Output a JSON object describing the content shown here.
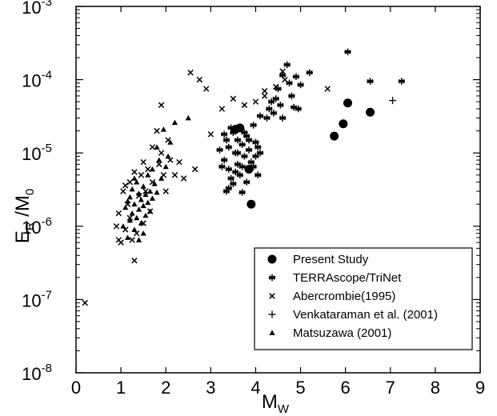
{
  "chart_data": {
    "type": "scatter",
    "xlabel": "M",
    "xlabel_sub": "W",
    "ylabel": "E",
    "ylabel_sub1": "R",
    "ylabel_mid": " /M",
    "ylabel_sub2": "0",
    "xlim": [
      0,
      9
    ],
    "ylim": [
      1e-08,
      0.001
    ],
    "y_scale": "log",
    "grid": false,
    "legend_position": "bottom-right",
    "x_ticks": [
      0,
      1,
      2,
      3,
      4,
      5,
      6,
      7,
      8,
      9
    ],
    "y_ticks": [
      {
        "value": 1e-08,
        "base": "10",
        "exp": "-8"
      },
      {
        "value": 1e-07,
        "base": "10",
        "exp": "-7"
      },
      {
        "value": 1e-06,
        "base": "10",
        "exp": "-6"
      },
      {
        "value": 1e-05,
        "base": "10",
        "exp": "-5"
      },
      {
        "value": 0.0001,
        "base": "10",
        "exp": "-4"
      },
      {
        "value": 0.001,
        "base": "10",
        "exp": "-3"
      }
    ],
    "series": [
      {
        "name": "Present Study",
        "marker": "circle",
        "points": [
          [
            3.55,
            2.1e-05
          ],
          [
            3.65,
            2.2e-05
          ],
          [
            3.85,
            6e-06
          ],
          [
            3.9,
            2e-06
          ],
          [
            5.75,
            1.7e-05
          ],
          [
            5.95,
            2.5e-05
          ],
          [
            6.05,
            4.8e-05
          ],
          [
            6.55,
            3.6e-05
          ]
        ]
      },
      {
        "name": "TERRAscope/TriNet",
        "marker": "asterisk",
        "points": [
          [
            3.2,
            1.1e-05
          ],
          [
            3.3,
            8e-06
          ],
          [
            3.35,
            1.5e-05
          ],
          [
            3.4,
            6e-06
          ],
          [
            3.45,
            4.5e-06
          ],
          [
            3.5,
            1.9e-05
          ],
          [
            3.55,
            1e-05
          ],
          [
            3.6,
            7e-06
          ],
          [
            3.65,
            5e-06
          ],
          [
            3.7,
            1.3e-05
          ],
          [
            3.75,
            9e-06
          ],
          [
            3.8,
            1.7e-05
          ],
          [
            3.85,
            1.1e-05
          ],
          [
            3.9,
            7.5e-06
          ],
          [
            3.95,
            2.4e-05
          ],
          [
            4.0,
            1.4e-05
          ],
          [
            4.05,
            1.2e-05
          ],
          [
            4.1,
            3.2e-05
          ],
          [
            3.3,
            1.8e-05
          ],
          [
            3.4,
            3.3e-06
          ],
          [
            3.5,
            3.8e-06
          ],
          [
            3.6,
            1.5e-05
          ],
          [
            3.7,
            6.5e-06
          ],
          [
            3.8,
            4e-06
          ],
          [
            3.95,
            6.5e-06
          ],
          [
            3.25,
            6.5e-06
          ],
          [
            3.45,
            2.2e-05
          ],
          [
            3.7,
            2.9e-06
          ],
          [
            3.85,
            1.5e-05
          ],
          [
            4.0,
            9e-06
          ],
          [
            3.4,
            1.2e-05
          ],
          [
            3.6,
            1e-05
          ],
          [
            3.75,
            1.9e-05
          ],
          [
            3.35,
            3e-06
          ],
          [
            3.55,
            5.5e-06
          ],
          [
            4.4,
            3.5e-05
          ],
          [
            4.45,
            5.5e-05
          ],
          [
            4.5,
            7.5e-05
          ],
          [
            4.55,
            4.5e-05
          ],
          [
            4.6,
            3e-05
          ],
          [
            4.3,
            4e-05
          ],
          [
            4.35,
            5e-05
          ],
          [
            4.25,
            3e-05
          ],
          [
            4.7,
            0.00016
          ],
          [
            4.75,
            9e-05
          ],
          [
            4.8,
            6e-05
          ],
          [
            4.85,
            4.2e-05
          ],
          [
            4.9,
            0.00011
          ],
          [
            5.0,
            8.5e-05
          ],
          [
            5.2,
            0.000125
          ],
          [
            4.6,
            0.000115
          ],
          [
            4.95,
            4e-05
          ],
          [
            4.1,
            1e-05
          ],
          [
            4.05,
            5e-06
          ],
          [
            6.05,
            0.00024
          ],
          [
            6.55,
            9.5e-05
          ],
          [
            7.25,
            9.5e-05
          ]
        ]
      },
      {
        "name": "Abercrombie(1995)",
        "marker": "x",
        "points": [
          [
            0.2,
            9e-08
          ],
          [
            0.9,
            1e-06
          ],
          [
            0.95,
            1.5e-06
          ],
          [
            1.0,
            6e-07
          ],
          [
            1.05,
            3e-06
          ],
          [
            1.1,
            9e-07
          ],
          [
            1.15,
            2e-06
          ],
          [
            1.2,
            4e-06
          ],
          [
            1.2,
            1.3e-06
          ],
          [
            1.25,
            6.5e-07
          ],
          [
            1.3,
            3.4e-07
          ],
          [
            1.35,
            8e-07
          ],
          [
            1.4,
            2.6e-06
          ],
          [
            1.45,
            5e-06
          ],
          [
            1.5,
            1.1e-06
          ],
          [
            1.55,
            3e-06
          ],
          [
            1.6,
            6e-06
          ],
          [
            1.65,
            1.6e-06
          ],
          [
            1.7,
            4e-06
          ],
          [
            1.8,
            2e-05
          ],
          [
            1.85,
            7e-06
          ],
          [
            1.9,
            1e-05
          ],
          [
            1.95,
            5e-06
          ],
          [
            2.0,
            3e-06
          ],
          [
            2.1,
            8e-06
          ],
          [
            2.2,
            5e-06
          ],
          [
            2.3,
            7.5e-06
          ],
          [
            2.4,
            4.5e-06
          ],
          [
            1.9,
            4.5e-05
          ],
          [
            0.95,
            6.5e-07
          ],
          [
            1.1,
            3.6e-06
          ],
          [
            1.3,
            5.5e-06
          ],
          [
            1.5,
            7.5e-06
          ],
          [
            1.7,
            1.2e-05
          ],
          [
            2.05,
            1.5e-05
          ],
          [
            2.65,
            6e-06
          ],
          [
            2.55,
            0.000125
          ],
          [
            2.75,
            0.0001
          ],
          [
            2.9,
            7.5e-05
          ],
          [
            3.25,
            4e-05
          ],
          [
            3.5,
            5.5e-05
          ],
          [
            3.75,
            4.5e-05
          ],
          [
            4.0,
            5e-05
          ],
          [
            4.2,
            6e-05
          ],
          [
            3.0,
            1.8e-05
          ],
          [
            4.45,
            8e-05
          ],
          [
            4.6,
            0.00013
          ],
          [
            4.65,
            0.0001
          ],
          [
            5.6,
            7.5e-05
          ],
          [
            4.2,
            7e-05
          ]
        ]
      },
      {
        "name": "Venkataraman et al. (2001)",
        "marker": "plus",
        "points": [
          [
            7.05,
            5.2e-05
          ]
        ]
      },
      {
        "name": "Matsuzawa (2001)",
        "marker": "triangle",
        "points": [
          [
            1.05,
            1e-06
          ],
          [
            1.1,
            1.8e-06
          ],
          [
            1.15,
            7e-07
          ],
          [
            1.2,
            2.5e-06
          ],
          [
            1.2,
            1.2e-06
          ],
          [
            1.25,
            1.5e-06
          ],
          [
            1.25,
            3.2e-06
          ],
          [
            1.3,
            9e-07
          ],
          [
            1.3,
            2e-06
          ],
          [
            1.35,
            1.3e-06
          ],
          [
            1.35,
            4e-06
          ],
          [
            1.4,
            1.7e-06
          ],
          [
            1.4,
            2.8e-06
          ],
          [
            1.45,
            1.1e-06
          ],
          [
            1.45,
            2.3e-06
          ],
          [
            1.5,
            1.9e-06
          ],
          [
            1.5,
            3.5e-06
          ],
          [
            1.55,
            1.4e-06
          ],
          [
            1.55,
            2.7e-06
          ],
          [
            1.6,
            2.1e-06
          ],
          [
            1.6,
            5e-06
          ],
          [
            1.65,
            1.6e-06
          ],
          [
            1.65,
            3e-06
          ],
          [
            1.7,
            2.4e-06
          ],
          [
            1.7,
            6e-06
          ],
          [
            1.75,
            3.8e-06
          ],
          [
            1.8,
            2.9e-06
          ],
          [
            1.85,
            8e-06
          ],
          [
            1.9,
            4.5e-06
          ],
          [
            2.0,
            6.5e-06
          ],
          [
            2.05,
            9e-06
          ],
          [
            2.1,
            1.4e-05
          ],
          [
            2.2,
            2.6e-05
          ],
          [
            2.5,
            3e-05
          ],
          [
            1.3,
            4.5e-06
          ],
          [
            1.15,
            2.2e-06
          ],
          [
            1.4,
            6.5e-07
          ],
          [
            1.5,
            8e-07
          ],
          [
            1.8,
            1.2e-05
          ],
          [
            1.95,
            2.1e-05
          ]
        ]
      }
    ]
  }
}
